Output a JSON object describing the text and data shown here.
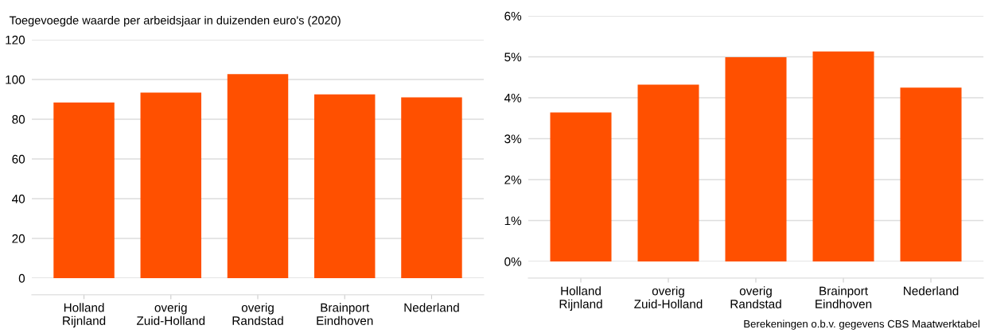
{
  "chart_data": [
    {
      "type": "bar",
      "title": "Toegevoegde waarde per arbeidsjaar in duizenden euro's (2020)",
      "categories": [
        "Holland\nRijnland",
        "overig\nZuid-Holland",
        "overig\nRandstad",
        "Brainport\nEindhoven",
        "Nederland"
      ],
      "values": [
        88.4,
        93.4,
        102.7,
        92.5,
        91.0
      ],
      "color": "#ff5000",
      "ylim": [
        0,
        120
      ],
      "yticks": [
        0,
        20,
        40,
        60,
        80,
        100,
        120
      ],
      "grid": "y",
      "legend": false
    },
    {
      "type": "bar",
      "categories": [
        "Holland\nRijnland",
        "overig\nZuid-Holland",
        "overig\nRandstad",
        "Brainport\nEindhoven",
        "Nederland"
      ],
      "values": [
        3.64,
        4.32,
        4.99,
        5.13,
        4.25
      ],
      "color": "#ff5000",
      "ylim": [
        0,
        6
      ],
      "yticks": [
        {
          "value": 0,
          "label": "0%"
        },
        {
          "value": 1,
          "label": "1%"
        },
        {
          "value": 2,
          "label": "2%"
        },
        {
          "value": 3,
          "label": "3%"
        },
        {
          "value": 4,
          "label": "4%"
        },
        {
          "value": 5,
          "label": "5%"
        },
        {
          "value": 6,
          "label": "6%"
        }
      ],
      "grid": "y",
      "legend": false,
      "annotations": [
        "Berekeningen o.b.v. gegevens CBS Maatwerktabel"
      ]
    }
  ]
}
